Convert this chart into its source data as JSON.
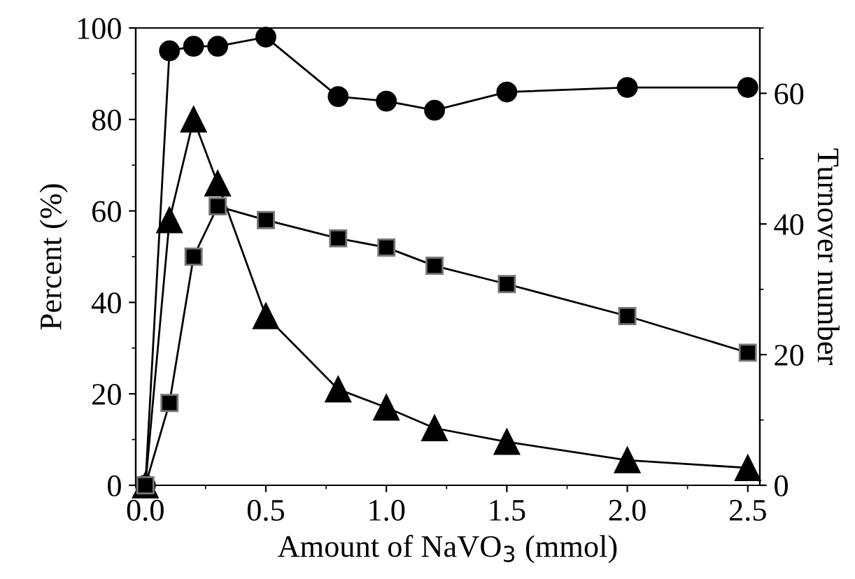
{
  "chart_data": {
    "type": "line",
    "xlabel": "Amount of NaVO$_{3}$ (mmol)",
    "ylabel": "Percent (%)",
    "y2label": "Turnover number",
    "x": [
      0,
      0.1,
      0.2,
      0.3,
      0.5,
      0.8,
      1.0,
      1.2,
      1.5,
      2.0,
      2.5
    ],
    "series": [
      {
        "color": "#000000",
        "marker": "circle",
        "values": [
          0,
          95,
          96,
          96,
          98,
          85,
          84,
          82,
          86,
          87,
          87
        ]
      },
      {
        "color": "#000000",
        "marker": "triangle",
        "values": [
          0,
          58,
          80,
          66,
          37,
          21,
          17,
          12.5,
          9.5,
          5.5,
          3.8
        ]
      },
      {
        "color": "#000000",
        "marker": "square",
        "axis": "y2",
        "values": [
          0,
          12.6,
          35,
          42.7,
          40.6,
          37.8,
          36.4,
          33.6,
          30.8,
          25.9,
          20.3
        ]
      }
    ],
    "xlim": [
      -0.04,
      2.55
    ],
    "xticks": [
      {
        "value": 0,
        "label": "0.0"
      },
      0.5,
      {
        "value": 1,
        "label": "1.0"
      },
      1.5,
      {
        "value": 2,
        "label": "2.0"
      },
      2.5
    ],
    "ylim": [
      0,
      100
    ],
    "yticks": [
      0,
      20,
      40,
      60,
      80,
      100
    ],
    "y2lim": [
      0,
      70
    ],
    "y2ticks": [
      0,
      20,
      40,
      60
    ],
    "grid": false,
    "legend": false,
    "line_style": "solid"
  }
}
